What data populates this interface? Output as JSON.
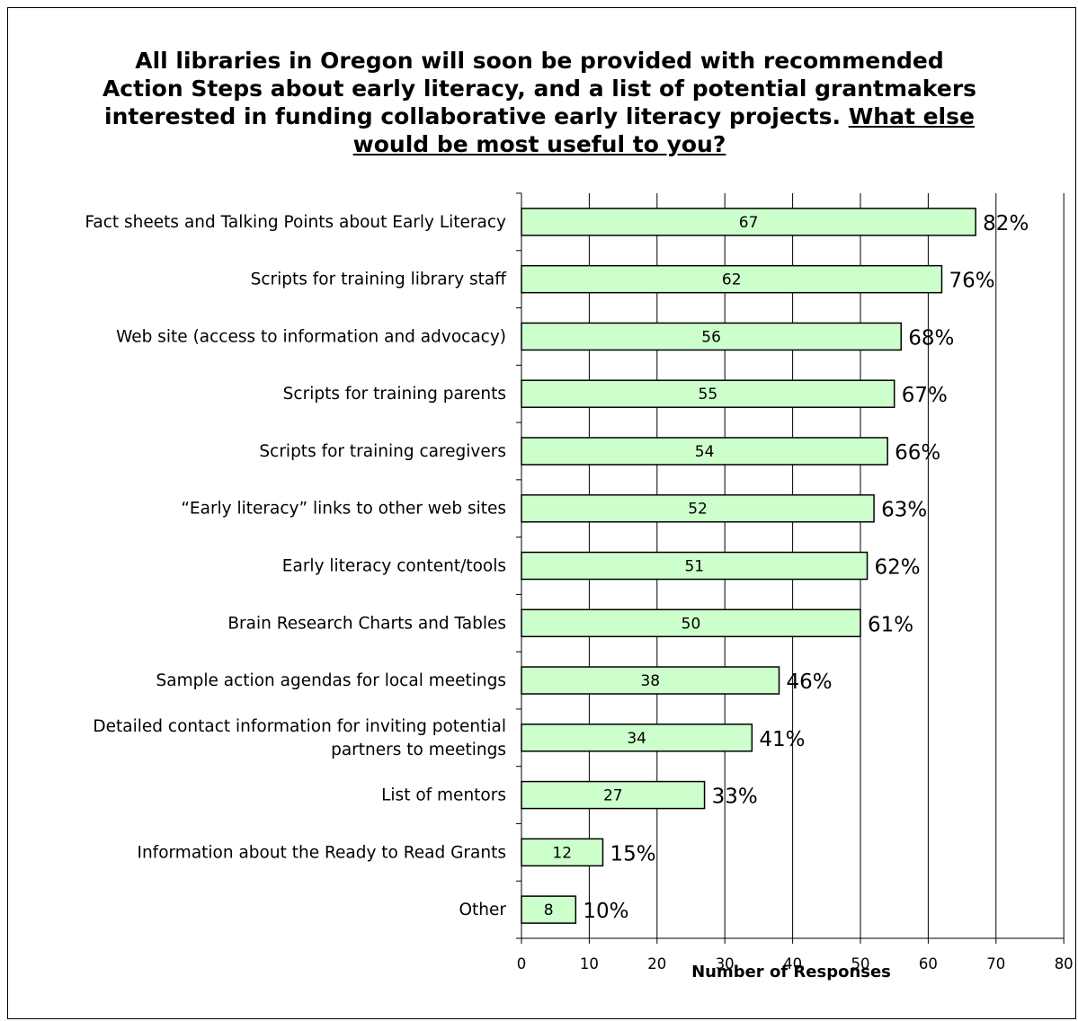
{
  "chart_data": {
    "type": "bar",
    "orientation": "horizontal",
    "title_line1": "All libraries in Oregon will soon be provided with recommended Action Steps about early literacy, and a list of potential grantmakers interested in funding collaborative early literacy projects.",
    "title_line2": "What else would be most useful to you?",
    "xlabel": "Number of Responses",
    "ylabel": "",
    "xlim": [
      0,
      80
    ],
    "xticks": [
      0,
      10,
      20,
      30,
      40,
      50,
      60,
      70,
      80
    ],
    "grid": "vertical",
    "categories": [
      [
        "Fact sheets and Talking Points about Early Literacy"
      ],
      [
        "Scripts for training library staff"
      ],
      [
        "Web site (access to information and advocacy)"
      ],
      [
        "Scripts for training parents"
      ],
      [
        "Scripts for training caregivers"
      ],
      [
        "“Early literacy” links to other web sites"
      ],
      [
        "Early literacy content/tools"
      ],
      [
        "Brain Research Charts and Tables"
      ],
      [
        "Sample action agendas for local meetings"
      ],
      [
        "Detailed contact information for inviting potential",
        "partners to meetings"
      ],
      [
        "List of mentors"
      ],
      [
        "Information about the Ready to Read Grants"
      ],
      [
        "Other"
      ]
    ],
    "values": [
      67,
      62,
      56,
      55,
      54,
      52,
      51,
      50,
      38,
      34,
      27,
      12,
      8
    ],
    "percent_labels": [
      "82%",
      "76%",
      "68%",
      "67%",
      "66%",
      "63%",
      "62%",
      "61%",
      "46%",
      "41%",
      "33%",
      "15%",
      "10%"
    ],
    "colors": {
      "bar_fill": "#ccffcc",
      "bar_stroke": "#000000",
      "grid": "#000000"
    }
  }
}
